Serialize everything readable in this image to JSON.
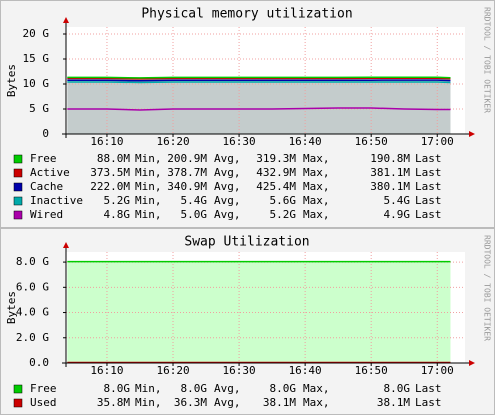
{
  "chart_data": [
    {
      "type": "area",
      "title": "Physical memory utilization",
      "y_label": "Bytes",
      "watermark": "RRDTOOL / TOBI OETIKER",
      "stacked": true,
      "grid": true,
      "fill_color": "#c4cccc",
      "x": [
        964,
        970,
        975,
        980,
        985,
        990,
        995,
        1000,
        1005,
        1010,
        1015,
        1020,
        1022
      ],
      "xlim": [
        963.8,
        1024.2
      ],
      "xticks": [
        {
          "value": 970,
          "label": "16:10"
        },
        {
          "value": 980,
          "label": "16:20"
        },
        {
          "value": 990,
          "label": "16:30"
        },
        {
          "value": 1000,
          "label": "16:40"
        },
        {
          "value": 1010,
          "label": "16:50"
        },
        {
          "value": 1020,
          "label": "17:00"
        }
      ],
      "ylim": [
        0,
        21.4
      ],
      "yticks": [
        0,
        {
          "value": 5,
          "label": "5 G"
        },
        {
          "value": 10,
          "label": "10 G"
        },
        {
          "value": 15,
          "label": "15 G"
        },
        {
          "value": 20,
          "label": "20 G"
        }
      ],
      "stat_labels": [
        "Min,",
        "Avg,",
        "Max,",
        "Last"
      ],
      "series": [
        {
          "name": "Free",
          "color": "#00cc00",
          "stats": [
            "88.0M",
            "200.9M",
            "319.3M",
            "190.8M"
          ],
          "values": [
            0.2,
            0.2,
            0.2,
            0.2,
            0.2,
            0.2,
            0.2,
            0.2,
            0.2,
            0.2,
            0.2,
            0.2,
            0.19
          ]
        },
        {
          "name": "Active",
          "color": "#cc0000",
          "stats": [
            "373.5M",
            "378.7M",
            "432.9M",
            "381.1M"
          ],
          "values": [
            0.38,
            0.38,
            0.38,
            0.38,
            0.38,
            0.38,
            0.38,
            0.38,
            0.38,
            0.38,
            0.38,
            0.38,
            0.38
          ]
        },
        {
          "name": "Cache",
          "color": "#0000aa",
          "stats": [
            "222.0M",
            "340.9M",
            "425.4M",
            "380.1M"
          ],
          "values": [
            0.34,
            0.34,
            0.34,
            0.34,
            0.34,
            0.34,
            0.34,
            0.34,
            0.34,
            0.36,
            0.37,
            0.38,
            0.38
          ]
        },
        {
          "name": "Inactive",
          "color": "#00aaaa",
          "stats": [
            "5.2G",
            "5.4G",
            "5.6G",
            "5.4G"
          ],
          "values": [
            5.4,
            5.4,
            5.5,
            5.4,
            5.4,
            5.4,
            5.4,
            5.3,
            5.2,
            5.2,
            5.4,
            5.5,
            5.4
          ]
        },
        {
          "name": "Wired",
          "color": "#aa00aa",
          "stats": [
            "4.8G",
            "5.0G",
            "5.2G",
            "4.9G"
          ],
          "values": [
            5.0,
            5.0,
            4.8,
            5.0,
            5.0,
            5.0,
            5.0,
            5.1,
            5.2,
            5.2,
            5.0,
            4.9,
            4.9
          ]
        }
      ]
    },
    {
      "type": "area",
      "title": "Swap Utilization",
      "y_label": "Bytes",
      "watermark": "RRDTOOL / TOBI OETIKER",
      "stacked": true,
      "grid": true,
      "fill_color": "#ccffcc",
      "x": [
        964,
        1022
      ],
      "xlim": [
        963.8,
        1024.2
      ],
      "xticks": [
        {
          "value": 970,
          "label": "16:10"
        },
        {
          "value": 980,
          "label": "16:20"
        },
        {
          "value": 990,
          "label": "16:30"
        },
        {
          "value": 1000,
          "label": "16:40"
        },
        {
          "value": 1010,
          "label": "16:50"
        },
        {
          "value": 1020,
          "label": "17:00"
        }
      ],
      "ylim": [
        0,
        8.8
      ],
      "yticks": [
        {
          "value": 0,
          "label": "0.0"
        },
        {
          "value": 2,
          "label": "2.0 G"
        },
        {
          "value": 4,
          "label": "4.0 G"
        },
        {
          "value": 6,
          "label": "6.0 G"
        },
        {
          "value": 8,
          "label": "8.0 G"
        }
      ],
      "stat_labels": [
        "Min,",
        "Avg,",
        "Max,",
        "Last"
      ],
      "series": [
        {
          "name": "Free",
          "color": "#00cc00",
          "stats": [
            "8.0G",
            "8.0G",
            "8.0G",
            "8.0G"
          ],
          "values": [
            8.0,
            8.0
          ]
        },
        {
          "name": "Used",
          "color": "#cc0000",
          "stats": [
            "35.8M",
            "36.3M",
            "38.1M",
            "38.1M"
          ],
          "values": [
            0.036,
            0.036
          ]
        }
      ]
    }
  ]
}
